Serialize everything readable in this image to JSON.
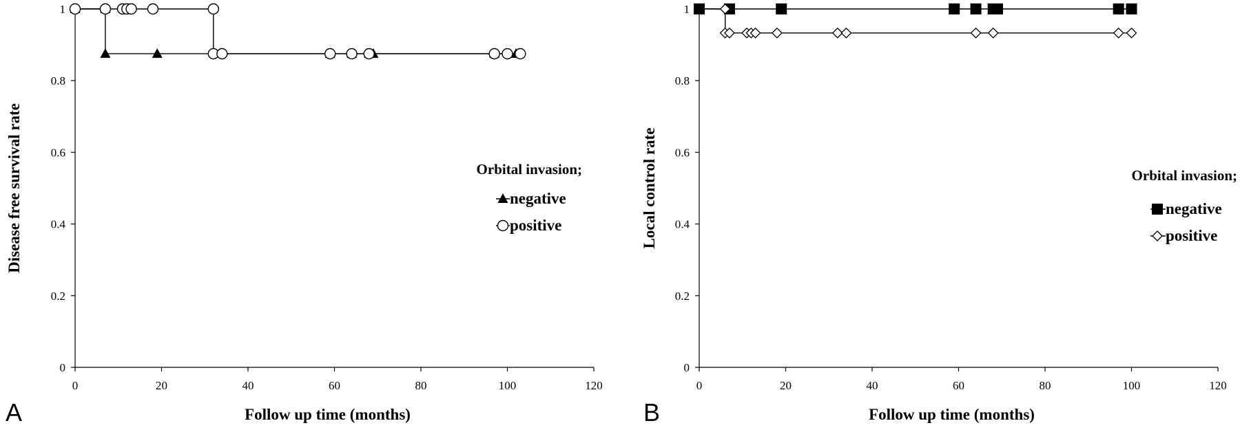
{
  "chart_data": [
    {
      "panel_letter": "A",
      "type": "line",
      "subtype": "kaplan-meier step",
      "xlabel": "Follow up time (months)",
      "ylabel": "Disease free survival rate",
      "xlim": [
        0,
        120
      ],
      "ylim": [
        0,
        1
      ],
      "xticks": [
        "0",
        "20",
        "40",
        "60",
        "80",
        "100",
        "120"
      ],
      "yticks": [
        "0",
        "0.2",
        "0.4",
        "0.6",
        "0.8",
        "1"
      ],
      "grid": false,
      "legend_title": "Orbital invasion;",
      "legend_placement": "right",
      "series": [
        {
          "name": "negative",
          "marker": "filled-triangle",
          "step_x": [
            0,
            7,
            7,
            102
          ],
          "step_y": [
            1,
            1,
            0.875,
            0.875
          ],
          "censor_x": [
            0,
            7,
            7,
            19,
            59,
            64,
            68,
            69,
            97,
            102
          ],
          "censor_y": [
            1,
            1,
            0.875,
            0.875,
            0.875,
            0.875,
            0.875,
            0.875,
            0.875,
            0.875
          ]
        },
        {
          "name": "positive",
          "marker": "open-circle",
          "step_x": [
            0,
            32,
            32,
            103
          ],
          "step_y": [
            1,
            1,
            0.875,
            0.875
          ],
          "censor_x": [
            0,
            7,
            11,
            12,
            13,
            18,
            32,
            32,
            34,
            59,
            64,
            68,
            97,
            100,
            103
          ],
          "censor_y": [
            1,
            1,
            1,
            1,
            1,
            1,
            1,
            0.875,
            0.875,
            0.875,
            0.875,
            0.875,
            0.875,
            0.875,
            0.875
          ]
        }
      ]
    },
    {
      "panel_letter": "B",
      "type": "line",
      "subtype": "kaplan-meier step",
      "xlabel": "Follow up time (months)",
      "ylabel": "Local control rate",
      "xlim": [
        0,
        120
      ],
      "ylim": [
        0,
        1
      ],
      "xticks": [
        "0",
        "20",
        "40",
        "60",
        "80",
        "100",
        "120"
      ],
      "yticks": [
        "0",
        "0.2",
        "0.4",
        "0.6",
        "0.8",
        "1"
      ],
      "grid": false,
      "legend_title": "Orbital invasion;",
      "legend_placement": "right",
      "series": [
        {
          "name": "negative",
          "marker": "filled-square",
          "step_x": [
            0,
            100
          ],
          "step_y": [
            1,
            1
          ],
          "censor_x": [
            0,
            7,
            19,
            59,
            64,
            68,
            69,
            97,
            100
          ],
          "censor_y": [
            1,
            1,
            1,
            1,
            1,
            1,
            1,
            1,
            1
          ]
        },
        {
          "name": "positive",
          "marker": "open-diamond",
          "step_x": [
            0,
            6,
            6,
            100
          ],
          "step_y": [
            1,
            1,
            0.933,
            0.933
          ],
          "censor_x": [
            6,
            6,
            7,
            11,
            12,
            13,
            18,
            32,
            34,
            64,
            68,
            97,
            100
          ],
          "censor_y": [
            1,
            0.933,
            0.933,
            0.933,
            0.933,
            0.933,
            0.933,
            0.933,
            0.933,
            0.933,
            0.933,
            0.933,
            0.933
          ]
        }
      ]
    }
  ]
}
